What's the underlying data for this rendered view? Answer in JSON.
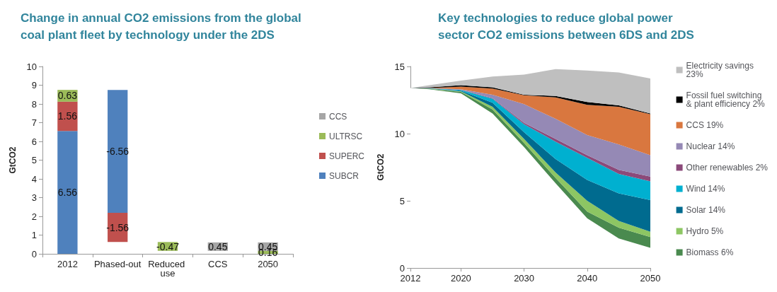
{
  "chart_data": [
    {
      "type": "bar",
      "title": "Change in annual CO2 emissions from the global coal plant fleet by technology under the 2DS",
      "ylabel": "GtCO2",
      "categories": [
        "2012",
        "Phased-out",
        "Reduced use",
        "CCS",
        "2050"
      ],
      "stacked": false,
      "series": [
        {
          "name": "SUBCR",
          "color": "#4f81bd",
          "base": [
            0,
            8.75,
            null,
            null,
            null
          ],
          "values": [
            6.56,
            -6.56,
            null,
            null,
            null
          ]
        },
        {
          "name": "SUPERC",
          "color": "#c0504d",
          "base": [
            6.56,
            2.19,
            null,
            null,
            null
          ],
          "values": [
            1.56,
            -1.56,
            null,
            null,
            null
          ]
        },
        {
          "name": "ULTRSC",
          "color": "#9bbb59",
          "base": [
            8.12,
            null,
            0.63,
            null,
            0
          ],
          "values": [
            0.63,
            null,
            -0.47,
            null,
            0.16
          ]
        },
        {
          "name": "CCS",
          "color": "#a6a6a6",
          "base": [
            null,
            null,
            null,
            0.16,
            0.16
          ],
          "values": [
            null,
            null,
            null,
            0.45,
            0.45
          ]
        }
      ],
      "ylim": [
        0,
        10
      ],
      "yticks": [
        0,
        1,
        2,
        3,
        4,
        5,
        6,
        7,
        8,
        9,
        10
      ],
      "data_labels": true,
      "legend": "right",
      "grid": false
    },
    {
      "type": "area",
      "title": "Key technologies to reduce global power sector CO2 emissions between 6DS and 2DS",
      "ylabel": "GtCO2",
      "x": [
        2012,
        2015,
        2020,
        2025,
        2030,
        2035,
        2040,
        2045,
        2050
      ],
      "stacked": true,
      "series": [
        {
          "color": "#ffffff",
          "values": [
            13.4,
            13.3,
            13.0,
            11.5,
            9.0,
            6.3,
            3.7,
            2.2,
            1.5
          ]
        },
        {
          "name": "Biomass 6%",
          "color": "#4a8a4f",
          "values": [
            0,
            0.03,
            0.1,
            0.3,
            0.3,
            0.4,
            0.5,
            0.8,
            0.8
          ]
        },
        {
          "name": "Hydro 5%",
          "color": "#8dc663",
          "values": [
            0,
            0.02,
            0.05,
            0.2,
            0.3,
            0.4,
            0.8,
            0.5,
            0.4
          ]
        },
        {
          "name": "Solar 14%",
          "color": "#006b8f",
          "values": [
            0,
            0.02,
            0.05,
            0.3,
            0.5,
            1.0,
            1.55,
            2.05,
            2.35
          ]
        },
        {
          "name": "Wind 14%",
          "color": "#00b0d0",
          "values": [
            0,
            0.01,
            0.05,
            0.3,
            0.6,
            1.3,
            1.65,
            1.45,
            1.4
          ]
        },
        {
          "name": "Other renewables 2%",
          "color": "#8b4a7a",
          "values": [
            0,
            0,
            0.02,
            0.05,
            0.1,
            0.2,
            0.2,
            0.3,
            0.35
          ]
        },
        {
          "name": "Nuclear 14%",
          "color": "#9589b5",
          "values": [
            0,
            0.01,
            0.03,
            0.25,
            1.4,
            1.5,
            1.5,
            1.9,
            1.6
          ]
        },
        {
          "name": "CCS 19%",
          "color": "#d9773f",
          "values": [
            0,
            0.01,
            0.2,
            0.45,
            0.65,
            1.6,
            2.25,
            2.8,
            3.05
          ]
        },
        {
          "name": "Fossil fuel switching & plant efficiency 2%",
          "color": "#000000",
          "values": [
            0,
            0.05,
            0.1,
            0.1,
            0.05,
            0.1,
            0.2,
            0.1,
            0.05
          ]
        },
        {
          "name": "Electricity savings 23%",
          "color": "#bfbfbf",
          "values": [
            0,
            0.15,
            0.35,
            0.8,
            1.5,
            2.0,
            2.35,
            2.45,
            2.6
          ]
        }
      ],
      "xlim": [
        2012,
        2050
      ],
      "xticks": [
        2012,
        2020,
        2030,
        2040,
        2050
      ],
      "ylim": [
        0,
        15
      ],
      "yticks": [
        0,
        5,
        10,
        15
      ],
      "legend": "right",
      "grid": false
    }
  ]
}
